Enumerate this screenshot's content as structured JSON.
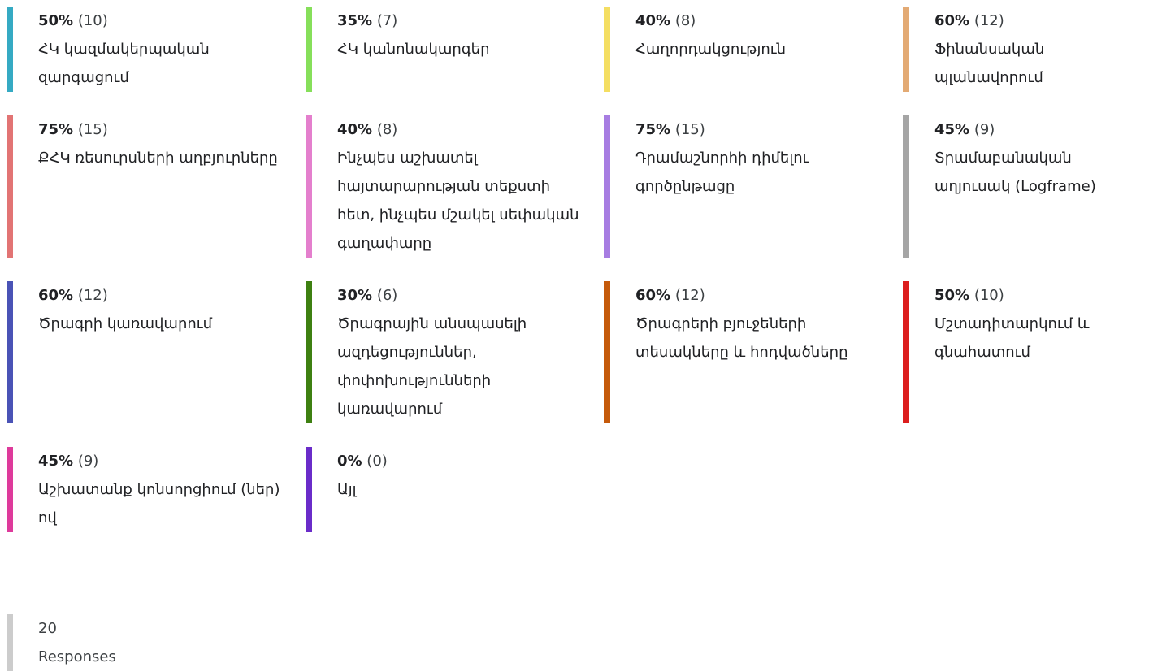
{
  "items": [
    {
      "percent": "50%",
      "count": "(10)",
      "label": "ՀԿ կազմակերպական զարգացում",
      "color": "#35aac3"
    },
    {
      "percent": "35%",
      "count": "(7)",
      "label": "ՀԿ կանոնակարգեր",
      "color": "#86df5a"
    },
    {
      "percent": "40%",
      "count": "(8)",
      "label": "Հաղորդակցություն",
      "color": "#f4de62"
    },
    {
      "percent": "60%",
      "count": "(12)",
      "label": "Ֆինանսական պլանավորում",
      "color": "#e3aa74"
    },
    {
      "percent": "75%",
      "count": "(15)",
      "label": "ՔՀԿ ռեսուրսների աղբյուրները",
      "color": "#e27474"
    },
    {
      "percent": "40%",
      "count": "(8)",
      "label": "Ինչպես աշխատել հայտարարության տեքստի հետ, ինչպես մշակել սեփական գաղափարը",
      "color": "#e47fcd"
    },
    {
      "percent": "75%",
      "count": "(15)",
      "label": "Դրամաշնորհի դիմելու գործընթացը",
      "color": "#a77de2"
    },
    {
      "percent": "45%",
      "count": "(9)",
      "label": "Տրամաբանական աղյուսակ (Logframe)",
      "color": "#a5a5a5"
    },
    {
      "percent": "60%",
      "count": "(12)",
      "label": "Ծրագրի կառավարում",
      "color": "#4a53b6"
    },
    {
      "percent": "30%",
      "count": "(6)",
      "label": "Ծրագրային անսպասելի ազդեցություններ, փոփոխությունների կառավարում",
      "color": "#3e8011"
    },
    {
      "percent": "60%",
      "count": "(12)",
      "label": "Ծրագրերի բյուջեների տեսակները և հոդվածները",
      "color": "#c55a0b"
    },
    {
      "percent": "50%",
      "count": "(10)",
      "label": "Մշտադիտարկում և գնահատում",
      "color": "#dc1e1e"
    },
    {
      "percent": "45%",
      "count": "(9)",
      "label": "Աշխատանք կոնսորցիում (ներ) ով",
      "color": "#de3a9b"
    },
    {
      "percent": "0%",
      "count": "(0)",
      "label": "Այլ",
      "color": "#6a2cc9"
    }
  ],
  "total": {
    "count": "20",
    "label": "Responses",
    "color": "#cccccc"
  }
}
